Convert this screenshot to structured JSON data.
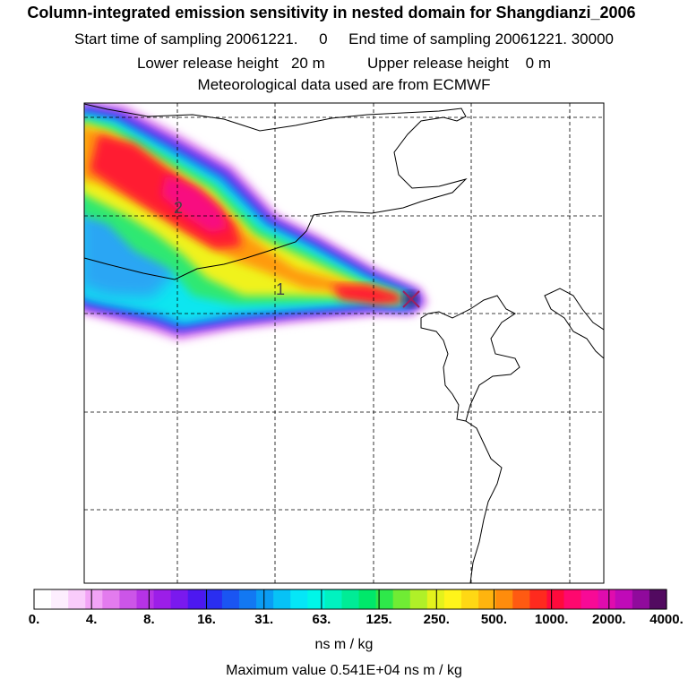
{
  "header": {
    "title": "Column-integrated emission sensitivity in nested domain for Shangdianzi_2006",
    "sampling": "Start time of sampling 20061221.     0     End time of sampling 20061221. 30000",
    "release": "Lower release height   20 m          Upper release height    0 m",
    "meteo": "Meteorological data used are from ECMWF"
  },
  "map": {
    "labels": [
      "2",
      "1"
    ],
    "release_marker": "x-marker"
  },
  "legend": {
    "colors": [
      "#ffffff",
      "#fdeefe",
      "#f9ccfb",
      "#f2a4f6",
      "#e37bee",
      "#cc55e8",
      "#b633e6",
      "#9c1ee8",
      "#7a19ee",
      "#4d18f0",
      "#2a2ef0",
      "#1a55f2",
      "#1278f2",
      "#0a9cf4",
      "#07c2f6",
      "#05e6f7",
      "#00f6e8",
      "#00f2c0",
      "#00ec96",
      "#00e86a",
      "#2ee84a",
      "#70ec34",
      "#b0f028",
      "#e4f21c",
      "#fff41a",
      "#ffd814",
      "#ffb40e",
      "#ff8c0c",
      "#ff5a12",
      "#ff2a1e",
      "#ff0a3c",
      "#ff086e",
      "#f80a96",
      "#e00cae",
      "#c00ab8",
      "#900a9c",
      "#520a60"
    ],
    "tick_labels": [
      "0.",
      "4.",
      "8.",
      "16.",
      "31.",
      "63.",
      "125.",
      "250.",
      "500.",
      "1000.",
      "2000.",
      "4000."
    ],
    "units": "ns m / kg",
    "max_value": "Maximum value  0.541E+04 ns m / kg"
  }
}
